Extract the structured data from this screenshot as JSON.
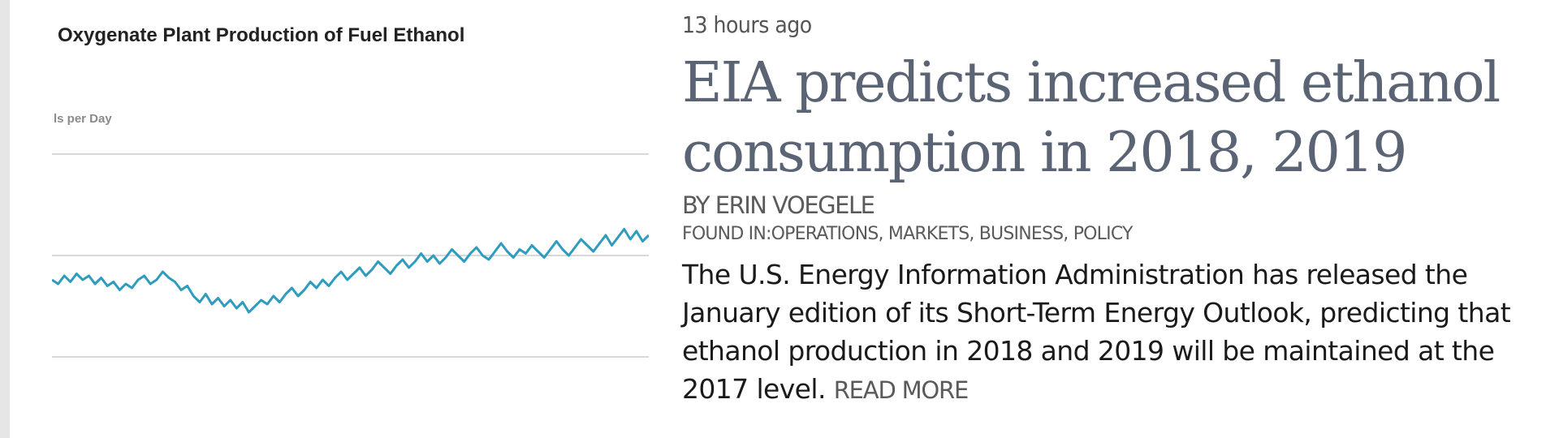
{
  "thumbnail": {
    "title": "Oxygenate Plant Production of Fuel Ethanol",
    "unit_label": "ls per Day",
    "colors": {
      "line": "#2e9cbf",
      "grid": "#d8d8d8"
    },
    "chart_data": {
      "type": "line",
      "title": "Oxygenate Plant Production of Fuel Ethanol",
      "ylabel": "ls per Day",
      "grid": true,
      "series": [
        {
          "values": [
            0.38,
            0.36,
            0.4,
            0.37,
            0.41,
            0.38,
            0.4,
            0.36,
            0.39,
            0.35,
            0.37,
            0.33,
            0.36,
            0.34,
            0.38,
            0.4,
            0.36,
            0.38,
            0.42,
            0.39,
            0.37,
            0.33,
            0.35,
            0.3,
            0.27,
            0.31,
            0.26,
            0.29,
            0.25,
            0.28,
            0.24,
            0.27,
            0.22,
            0.25,
            0.28,
            0.26,
            0.3,
            0.27,
            0.31,
            0.34,
            0.3,
            0.33,
            0.37,
            0.34,
            0.38,
            0.35,
            0.39,
            0.42,
            0.38,
            0.41,
            0.44,
            0.4,
            0.43,
            0.47,
            0.44,
            0.41,
            0.45,
            0.48,
            0.44,
            0.47,
            0.51,
            0.47,
            0.5,
            0.46,
            0.49,
            0.53,
            0.5,
            0.47,
            0.51,
            0.54,
            0.5,
            0.48,
            0.52,
            0.56,
            0.52,
            0.49,
            0.53,
            0.51,
            0.55,
            0.52,
            0.49,
            0.53,
            0.57,
            0.53,
            0.5,
            0.54,
            0.58,
            0.55,
            0.52,
            0.56,
            0.6,
            0.55,
            0.59,
            0.63,
            0.58,
            0.62,
            0.57,
            0.6
          ]
        }
      ]
    }
  },
  "article": {
    "timestamp": "13 hours ago",
    "headline": "EIA predicts increased ethanol consumption in 2018, 2019",
    "byline": "BY ERIN VOEGELE",
    "found_in_label": "FOUND IN:",
    "categories": [
      "OPERATIONS",
      "MARKETS",
      "BUSINESS",
      "POLICY"
    ],
    "summary": "The U.S. Energy Information Administration has released the January edition of its Short-Term Energy Outlook, predicting that ethanol production in 2018 and 2019 will be maintained at the 2017 level.",
    "read_more": "READ MORE",
    "colors": {
      "headline": "#5b6474",
      "meta": "#5a5a5a",
      "body": "#1a1a1a"
    }
  }
}
